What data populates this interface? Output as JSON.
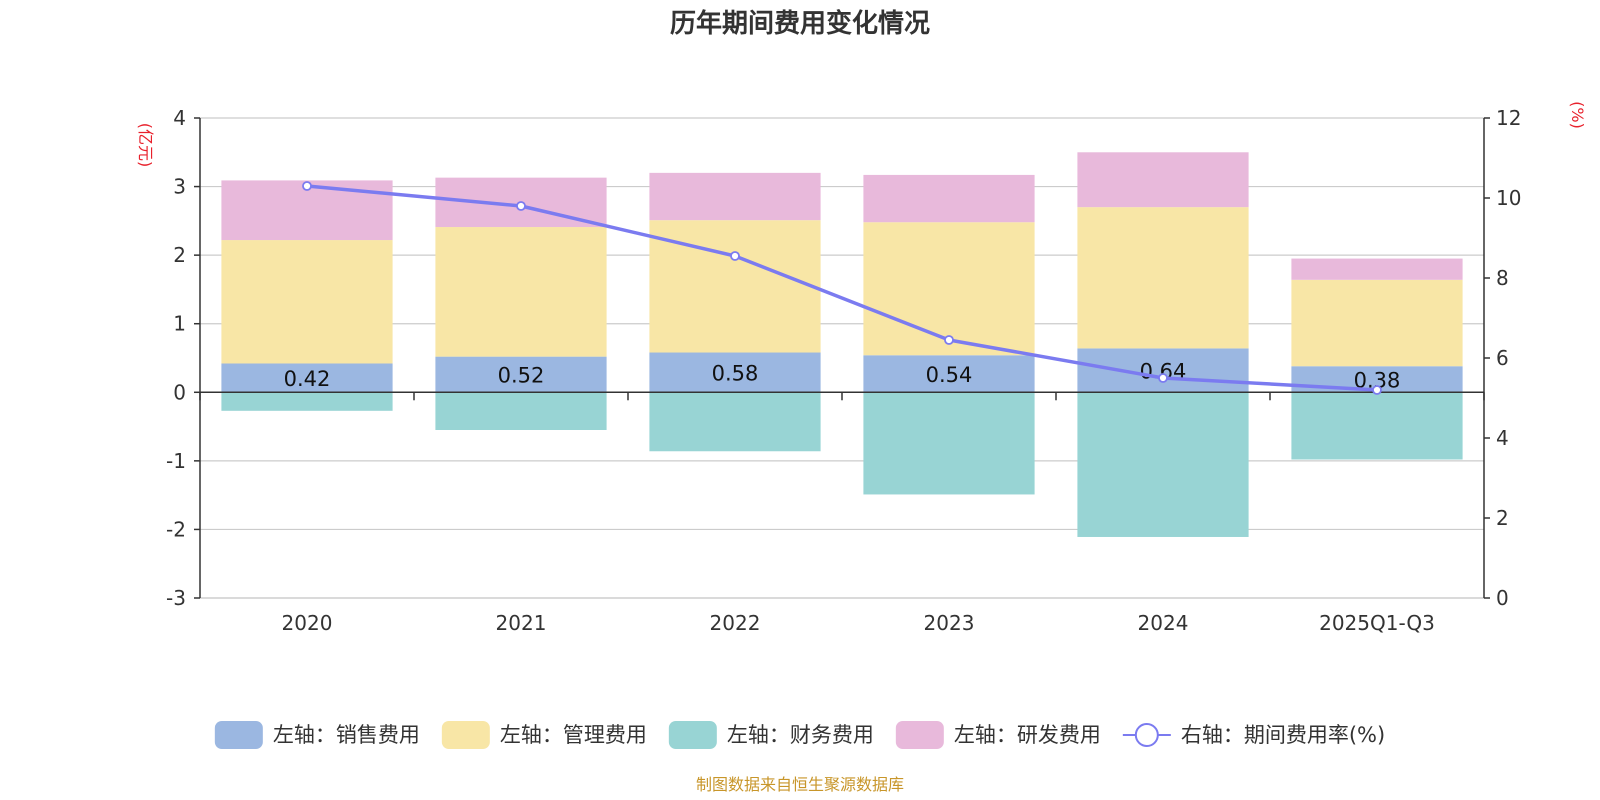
{
  "chart_data": {
    "type": "bar",
    "title": "历年期间费用变化情况",
    "categories": [
      "2020",
      "2021",
      "2022",
      "2023",
      "2024",
      "2025Q1-Q3"
    ],
    "left_axis": {
      "unit": "(亿元)",
      "ylim": [
        -3,
        4
      ],
      "ticks": [
        "4",
        "3",
        "2",
        "1",
        "0",
        "-1",
        "-2",
        "-3"
      ]
    },
    "right_axis": {
      "unit": "(%)",
      "ylim": [
        0,
        12
      ],
      "ticks": [
        "12",
        "10",
        "8",
        "6",
        "4",
        "2",
        "0"
      ]
    },
    "series": [
      {
        "name": "左轴：销售费用",
        "color": "#9bb7e1",
        "axis": "left",
        "values": [
          0.42,
          0.52,
          0.58,
          0.54,
          0.64,
          0.38
        ],
        "labels": [
          "0.42",
          "0.52",
          "0.58",
          "0.54",
          "0.64",
          "0.38"
        ]
      },
      {
        "name": "左轴：管理费用",
        "color": "#f8e6a6",
        "axis": "left",
        "values": [
          1.8,
          1.89,
          1.93,
          1.94,
          2.06,
          1.26
        ]
      },
      {
        "name": "左轴：财务费用",
        "color": "#98d4d4",
        "axis": "left",
        "values": [
          -0.27,
          -0.55,
          -0.86,
          -1.49,
          -2.11,
          -0.98
        ]
      },
      {
        "name": "左轴：研发费用",
        "color": "#e8b9db",
        "axis": "left",
        "values": [
          0.87,
          0.72,
          0.69,
          0.69,
          0.8,
          0.31
        ]
      },
      {
        "name": "右轴：期间费用率(%)",
        "color": "#7b7bf0",
        "axis": "right",
        "type": "line",
        "values": [
          10.3,
          9.8,
          8.55,
          6.45,
          5.5,
          5.2
        ]
      }
    ],
    "grid": true,
    "legend": "bottom-center"
  },
  "footer": {
    "source": "制图数据来自恒生聚源数据库"
  }
}
